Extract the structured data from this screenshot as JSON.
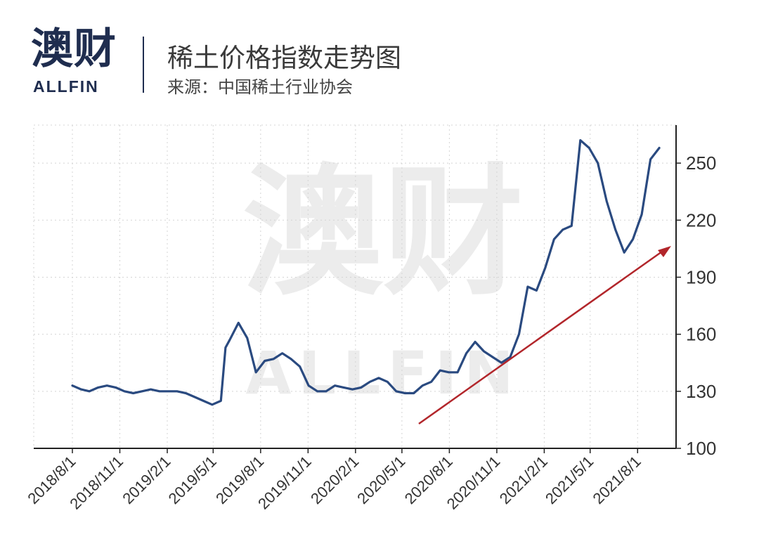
{
  "header": {
    "logo_cn": "澳财",
    "logo_en": "ALLFIN",
    "title": "稀土价格指数走势图",
    "source": "来源：中国稀土行业协会"
  },
  "colors": {
    "line": "#2a4a80",
    "arrow": "#b2262b",
    "axis": "#222222",
    "grid": "#d4d4d4"
  },
  "chart_data": {
    "type": "line",
    "title": "稀土价格指数走势图",
    "source": "来源：中国稀土行业协会",
    "x_dates": [
      "2018/8/1",
      "2018/11/1",
      "2019/2/1",
      "2019/5/1",
      "2019/8/1",
      "2019/11/1",
      "2020/2/1",
      "2020/5/1",
      "2020/8/1",
      "2020/11/1",
      "2021/2/1",
      "2021/5/1",
      "2021/8/1"
    ],
    "xlabel": "",
    "ylabel": "",
    "ylim": [
      100,
      270
    ],
    "yticks": [
      100,
      130,
      160,
      190,
      220,
      250
    ],
    "grid": true,
    "y_axis_side": "right",
    "series": [
      {
        "x": [
          "2018-08-01",
          "2018-08-18",
          "2018-09-03",
          "2018-09-20",
          "2018-10-07",
          "2018-10-24",
          "2018-11-10",
          "2018-11-27",
          "2018-12-14",
          "2018-12-31",
          "2019-01-17",
          "2019-02-03",
          "2019-02-20",
          "2019-03-09",
          "2019-03-26",
          "2019-04-12",
          "2019-04-29",
          "2019-05-16",
          "2019-05-25",
          "2019-06-02",
          "2019-06-19",
          "2019-07-06",
          "2019-07-23",
          "2019-08-09",
          "2019-08-26",
          "2019-09-12",
          "2019-09-29",
          "2019-10-16",
          "2019-11-02",
          "2019-11-19",
          "2019-12-06",
          "2019-12-23",
          "2020-01-09",
          "2020-01-26",
          "2020-02-12",
          "2020-02-29",
          "2020-03-17",
          "2020-04-03",
          "2020-04-20",
          "2020-05-07",
          "2020-05-24",
          "2020-06-10",
          "2020-06-27",
          "2020-07-14",
          "2020-07-31",
          "2020-08-17",
          "2020-09-03",
          "2020-09-20",
          "2020-10-07",
          "2020-10-24",
          "2020-11-10",
          "2020-11-27",
          "2020-12-14",
          "2020-12-31",
          "2021-01-17",
          "2021-02-03",
          "2021-02-20",
          "2021-03-09",
          "2021-03-26",
          "2021-04-12",
          "2021-04-29",
          "2021-05-16",
          "2021-06-02",
          "2021-06-19",
          "2021-07-06",
          "2021-07-23",
          "2021-08-09",
          "2021-08-26",
          "2021-09-12"
        ],
        "values": [
          133,
          131,
          130,
          132,
          133,
          132,
          130,
          129,
          130,
          131,
          130,
          130,
          130,
          129,
          127,
          125,
          123,
          125,
          153,
          157,
          166,
          158,
          140,
          146,
          147,
          150,
          147,
          143,
          133,
          130,
          130,
          133,
          132,
          131,
          132,
          135,
          137,
          135,
          130,
          129,
          129,
          133,
          135,
          141,
          140,
          140,
          150,
          156,
          151,
          148,
          145,
          148,
          160,
          185,
          183,
          195,
          210,
          215,
          217,
          262,
          258,
          250,
          230,
          215,
          203,
          210,
          223,
          252,
          258
        ]
      }
    ]
  }
}
